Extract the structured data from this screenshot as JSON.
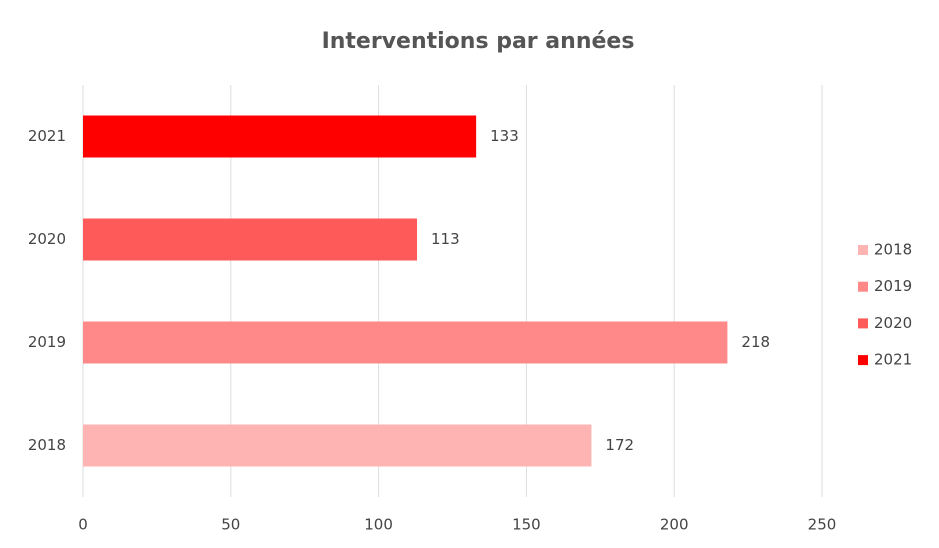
{
  "chart_data": {
    "type": "bar",
    "orientation": "horizontal",
    "title": "Interventions par années",
    "categories": [
      "2018",
      "2019",
      "2020",
      "2021"
    ],
    "values": [
      172,
      218,
      113,
      133
    ],
    "colors": [
      "#ffb4b4",
      "#ff8888",
      "#ff5a5a",
      "#ff0000"
    ],
    "xlim": [
      0,
      250
    ],
    "xticks": [
      0,
      50,
      100,
      150,
      200,
      250
    ],
    "grid": true,
    "legend": "right"
  }
}
